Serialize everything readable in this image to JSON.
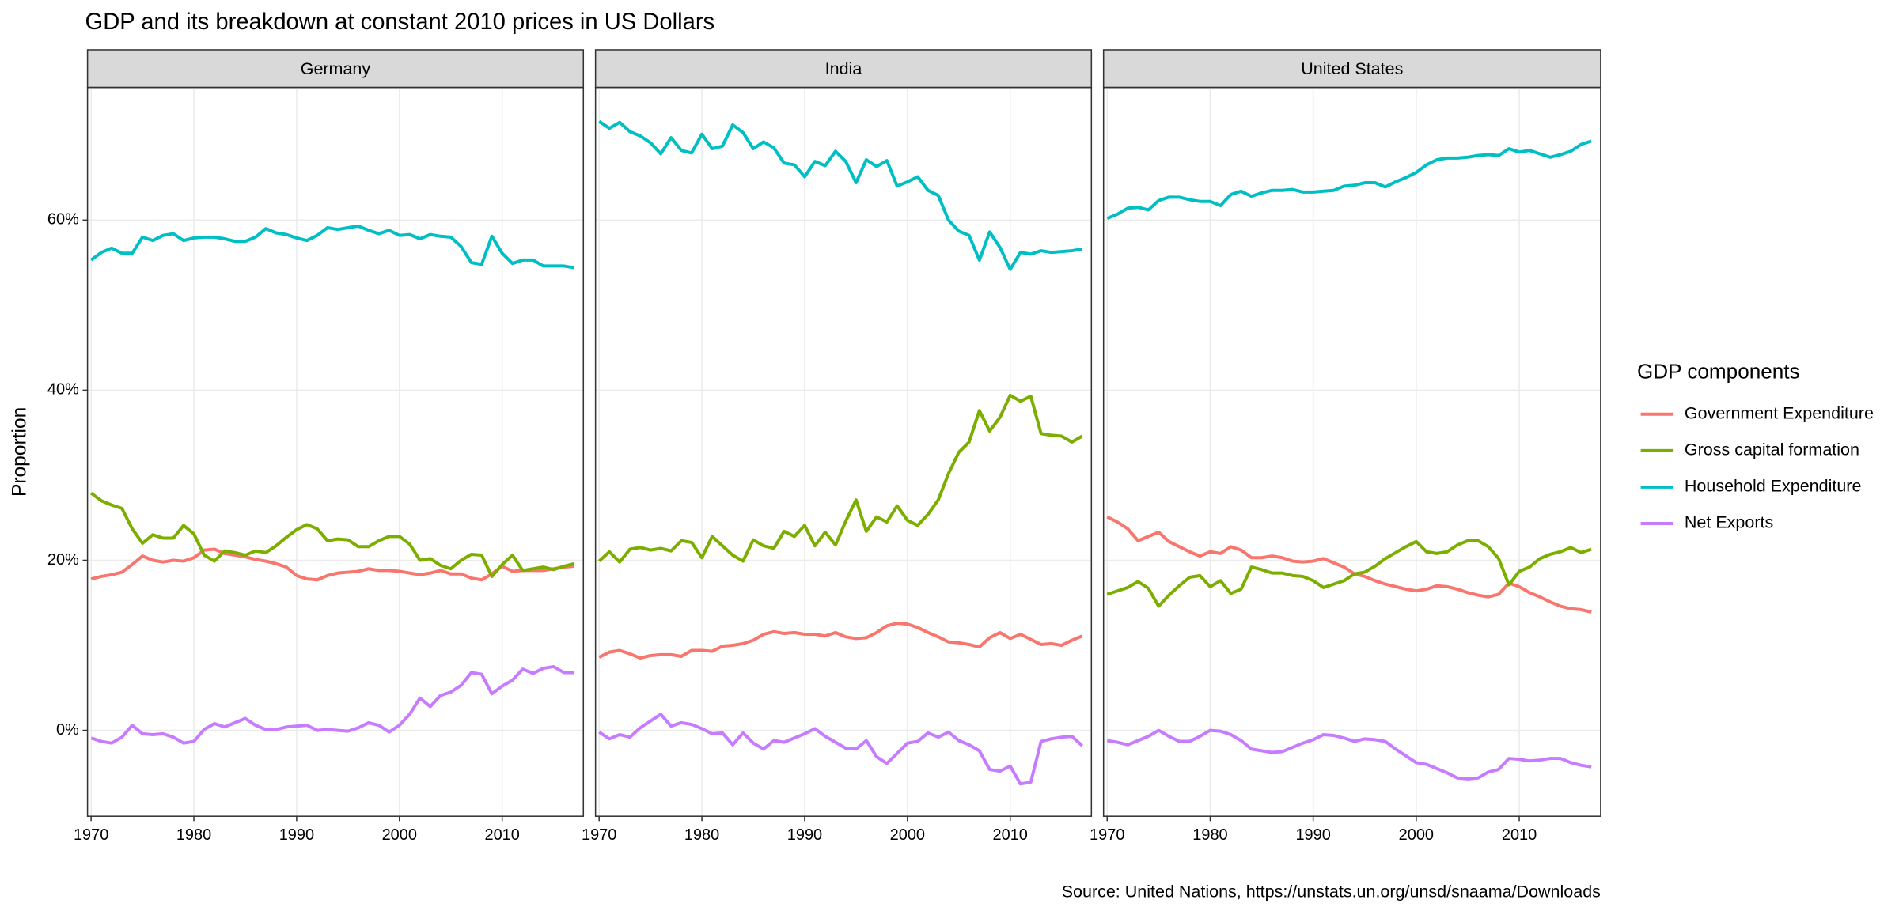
{
  "chart_data": {
    "type": "line",
    "title": "GDP and its breakdown at constant 2010 prices in US Dollars",
    "y_label": "Proportion",
    "legend_title": "GDP components",
    "legend": "right",
    "caption": "Source: United Nations, https://unstats.un.org/unsd/snaama/Downloads",
    "grid": true,
    "x": [
      1970,
      1971,
      1972,
      1973,
      1974,
      1975,
      1976,
      1977,
      1978,
      1979,
      1980,
      1981,
      1982,
      1983,
      1984,
      1985,
      1986,
      1987,
      1988,
      1989,
      1990,
      1991,
      1992,
      1993,
      1994,
      1995,
      1996,
      1997,
      1998,
      1999,
      2000,
      2001,
      2002,
      2003,
      2004,
      2005,
      2006,
      2007,
      2008,
      2009,
      2010,
      2011,
      2012,
      2013,
      2014,
      2015,
      2016,
      2017
    ],
    "xlim": [
      1969.65,
      2017.9
    ],
    "xticks": [
      1970,
      1980,
      1990,
      2000,
      2010
    ],
    "ylim": [
      -10.1,
      75.6
    ],
    "yticks": [
      {
        "value": 0,
        "label": "0%"
      },
      {
        "value": 20,
        "label": "20%"
      },
      {
        "value": 40,
        "label": "40%"
      },
      {
        "value": 60,
        "label": "60%"
      }
    ],
    "series": [
      {
        "name": "Government Expenditure",
        "color": "#F8766D"
      },
      {
        "name": "Gross capital formation",
        "color": "#7CAE00"
      },
      {
        "name": "Household Expenditure",
        "color": "#00BFC4"
      },
      {
        "name": "Net Exports",
        "color": "#C77CFF"
      }
    ],
    "panels": [
      {
        "title": "Germany",
        "series": [
          {
            "values": [
              17.8,
              18.1,
              18.3,
              18.6,
              19.5,
              20.5,
              20.0,
              19.8,
              20.0,
              19.9,
              20.3,
              21.2,
              21.3,
              20.8,
              20.6,
              20.4,
              20.1,
              19.9,
              19.6,
              19.2,
              18.2,
              17.8,
              17.7,
              18.2,
              18.5,
              18.6,
              18.7,
              19.0,
              18.8,
              18.8,
              18.7,
              18.5,
              18.3,
              18.5,
              18.8,
              18.4,
              18.4,
              17.9,
              17.7,
              18.4,
              19.3,
              18.7,
              18.8,
              18.8,
              18.8,
              19.0,
              19.2,
              19.3
            ]
          },
          {
            "values": [
              27.9,
              27.0,
              26.5,
              26.1,
              23.7,
              22.0,
              23.0,
              22.6,
              22.6,
              24.1,
              23.1,
              20.6,
              19.9,
              21.1,
              20.9,
              20.6,
              21.1,
              20.9,
              21.7,
              22.7,
              23.6,
              24.2,
              23.7,
              22.3,
              22.5,
              22.4,
              21.6,
              21.6,
              22.3,
              22.8,
              22.8,
              21.9,
              20.0,
              20.2,
              19.4,
              19.0,
              20.0,
              20.7,
              20.6,
              18.1,
              19.5,
              20.6,
              18.8,
              19.0,
              19.2,
              18.9,
              19.3,
              19.6
            ]
          },
          {
            "values": [
              55.3,
              56.2,
              56.7,
              56.1,
              56.1,
              58.0,
              57.6,
              58.2,
              58.4,
              57.6,
              57.9,
              58.0,
              58.0,
              57.8,
              57.5,
              57.5,
              58.0,
              59.0,
              58.5,
              58.3,
              57.9,
              57.6,
              58.2,
              59.1,
              58.9,
              59.1,
              59.3,
              58.8,
              58.4,
              58.8,
              58.2,
              58.3,
              57.8,
              58.3,
              58.1,
              58.0,
              56.9,
              55.0,
              54.8,
              58.1,
              56.1,
              54.9,
              55.3,
              55.3,
              54.6,
              54.6,
              54.6,
              54.4
            ]
          },
          {
            "values": [
              -0.9,
              -1.3,
              -1.5,
              -0.8,
              0.6,
              -0.4,
              -0.5,
              -0.4,
              -0.8,
              -1.5,
              -1.3,
              0.1,
              0.8,
              0.4,
              0.9,
              1.4,
              0.6,
              0.1,
              0.1,
              0.4,
              0.5,
              0.6,
              0.0,
              0.1,
              0.0,
              -0.1,
              0.3,
              0.9,
              0.6,
              -0.2,
              0.6,
              1.9,
              3.8,
              2.8,
              4.1,
              4.5,
              5.3,
              6.8,
              6.6,
              4.3,
              5.2,
              5.9,
              7.2,
              6.7,
              7.3,
              7.5,
              6.8,
              6.8
            ]
          }
        ]
      },
      {
        "title": "India",
        "series": [
          {
            "values": [
              8.6,
              9.2,
              9.4,
              9.0,
              8.5,
              8.8,
              8.9,
              8.9,
              8.7,
              9.4,
              9.4,
              9.3,
              9.9,
              10.0,
              10.2,
              10.6,
              11.3,
              11.6,
              11.4,
              11.5,
              11.3,
              11.3,
              11.1,
              11.5,
              11.0,
              10.8,
              10.9,
              11.5,
              12.3,
              12.6,
              12.5,
              12.1,
              11.5,
              11.0,
              10.4,
              10.3,
              10.1,
              9.8,
              10.9,
              11.5,
              10.8,
              11.3,
              10.7,
              10.1,
              10.2,
              10.0,
              10.6,
              11.1
            ]
          },
          {
            "values": [
              19.9,
              21.0,
              19.8,
              21.3,
              21.5,
              21.2,
              21.4,
              21.1,
              22.3,
              22.1,
              20.3,
              22.8,
              21.7,
              20.6,
              19.9,
              22.4,
              21.7,
              21.4,
              23.4,
              22.8,
              24.1,
              21.7,
              23.3,
              21.8,
              24.6,
              27.1,
              23.4,
              25.1,
              24.5,
              26.4,
              24.7,
              24.1,
              25.4,
              27.1,
              30.2,
              32.7,
              33.9,
              37.6,
              35.2,
              36.8,
              39.4,
              38.7,
              39.3,
              34.9,
              34.7,
              34.6,
              33.9,
              34.6
            ]
          },
          {
            "values": [
              71.6,
              70.8,
              71.5,
              70.4,
              69.9,
              69.1,
              67.8,
              69.7,
              68.2,
              67.9,
              70.1,
              68.4,
              68.7,
              71.2,
              70.3,
              68.4,
              69.2,
              68.5,
              66.7,
              66.5,
              65.1,
              66.9,
              66.4,
              68.1,
              66.9,
              64.4,
              67.1,
              66.3,
              67.0,
              64.0,
              64.5,
              65.1,
              63.5,
              62.9,
              60.0,
              58.7,
              58.2,
              55.3,
              58.6,
              56.8,
              54.2,
              56.2,
              56.0,
              56.4,
              56.2,
              56.3,
              56.4,
              56.6
            ]
          },
          {
            "values": [
              -0.2,
              -1.0,
              -0.5,
              -0.8,
              0.3,
              1.1,
              1.9,
              0.5,
              0.9,
              0.7,
              0.2,
              -0.4,
              -0.3,
              -1.7,
              -0.3,
              -1.5,
              -2.2,
              -1.2,
              -1.4,
              -0.9,
              -0.4,
              0.2,
              -0.7,
              -1.4,
              -2.1,
              -2.2,
              -1.2,
              -3.1,
              -3.9,
              -2.7,
              -1.5,
              -1.3,
              -0.3,
              -0.8,
              -0.2,
              -1.2,
              -1.7,
              -2.4,
              -4.6,
              -4.8,
              -4.2,
              -6.3,
              -6.1,
              -1.3,
              -1.0,
              -0.8,
              -0.7,
              -1.8
            ]
          }
        ]
      },
      {
        "title": "United States",
        "series": [
          {
            "values": [
              25.1,
              24.5,
              23.7,
              22.3,
              22.8,
              23.3,
              22.2,
              21.6,
              21.0,
              20.5,
              21.0,
              20.8,
              21.6,
              21.2,
              20.3,
              20.3,
              20.5,
              20.3,
              19.9,
              19.8,
              19.9,
              20.2,
              19.7,
              19.2,
              18.4,
              18.1,
              17.6,
              17.2,
              16.9,
              16.6,
              16.4,
              16.6,
              17.0,
              16.9,
              16.6,
              16.2,
              15.9,
              15.7,
              16.0,
              17.3,
              16.9,
              16.2,
              15.7,
              15.1,
              14.6,
              14.3,
              14.2,
              13.9
            ]
          },
          {
            "values": [
              16.0,
              16.4,
              16.8,
              17.5,
              16.7,
              14.6,
              15.9,
              17.0,
              18.0,
              18.2,
              16.9,
              17.6,
              16.1,
              16.6,
              19.2,
              18.9,
              18.5,
              18.5,
              18.2,
              18.1,
              17.6,
              16.8,
              17.2,
              17.6,
              18.4,
              18.6,
              19.3,
              20.2,
              20.9,
              21.6,
              22.2,
              21.0,
              20.8,
              21.0,
              21.8,
              22.3,
              22.3,
              21.6,
              20.2,
              17.1,
              18.7,
              19.2,
              20.2,
              20.7,
              21.0,
              21.5,
              20.9,
              21.3
            ]
          },
          {
            "values": [
              60.2,
              60.7,
              61.4,
              61.5,
              61.2,
              62.3,
              62.7,
              62.7,
              62.4,
              62.2,
              62.2,
              61.7,
              63.0,
              63.4,
              62.8,
              63.2,
              63.5,
              63.5,
              63.6,
              63.3,
              63.3,
              63.4,
              63.5,
              64.0,
              64.1,
              64.4,
              64.4,
              63.9,
              64.5,
              65.0,
              65.6,
              66.5,
              67.1,
              67.3,
              67.3,
              67.4,
              67.6,
              67.7,
              67.6,
              68.4,
              68.0,
              68.2,
              67.8,
              67.4,
              67.7,
              68.1,
              68.9,
              69.3
            ]
          },
          {
            "values": [
              -1.2,
              -1.4,
              -1.7,
              -1.2,
              -0.7,
              0.0,
              -0.7,
              -1.3,
              -1.3,
              -0.7,
              0.0,
              -0.1,
              -0.5,
              -1.2,
              -2.2,
              -2.4,
              -2.6,
              -2.5,
              -2.0,
              -1.5,
              -1.1,
              -0.5,
              -0.6,
              -0.9,
              -1.3,
              -1.0,
              -1.1,
              -1.3,
              -2.2,
              -3.0,
              -3.8,
              -4.0,
              -4.5,
              -5.0,
              -5.6,
              -5.7,
              -5.6,
              -4.9,
              -4.6,
              -3.3,
              -3.4,
              -3.6,
              -3.5,
              -3.3,
              -3.3,
              -3.8,
              -4.1,
              -4.3
            ]
          }
        ]
      }
    ]
  }
}
